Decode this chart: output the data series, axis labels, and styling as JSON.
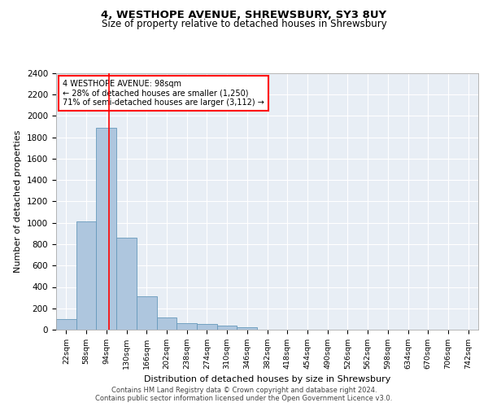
{
  "title1": "4, WESTHOPE AVENUE, SHREWSBURY, SY3 8UY",
  "title2": "Size of property relative to detached houses in Shrewsbury",
  "xlabel": "Distribution of detached houses by size in Shrewsbury",
  "ylabel": "Number of detached properties",
  "bar_color": "#aec6de",
  "bar_edge_color": "#6699bb",
  "categories": [
    "22sqm",
    "58sqm",
    "94sqm",
    "130sqm",
    "166sqm",
    "202sqm",
    "238sqm",
    "274sqm",
    "310sqm",
    "346sqm",
    "382sqm",
    "418sqm",
    "454sqm",
    "490sqm",
    "526sqm",
    "562sqm",
    "598sqm",
    "634sqm",
    "670sqm",
    "706sqm",
    "742sqm"
  ],
  "values": [
    100,
    1010,
    1890,
    860,
    315,
    115,
    60,
    50,
    40,
    25,
    0,
    0,
    0,
    0,
    0,
    0,
    0,
    0,
    0,
    0,
    0
  ],
  "ylim": [
    0,
    2400
  ],
  "yticks": [
    0,
    200,
    400,
    600,
    800,
    1000,
    1200,
    1400,
    1600,
    1800,
    2000,
    2200,
    2400
  ],
  "annotation_title": "4 WESTHOPE AVENUE: 98sqm",
  "annotation_line1": "← 28% of detached houses are smaller (1,250)",
  "annotation_line2": "71% of semi-detached houses are larger (3,112) →",
  "red_line_x": 2.11,
  "footer1": "Contains HM Land Registry data © Crown copyright and database right 2024.",
  "footer2": "Contains public sector information licensed under the Open Government Licence v3.0.",
  "plot_bg_color": "#e8eef5"
}
